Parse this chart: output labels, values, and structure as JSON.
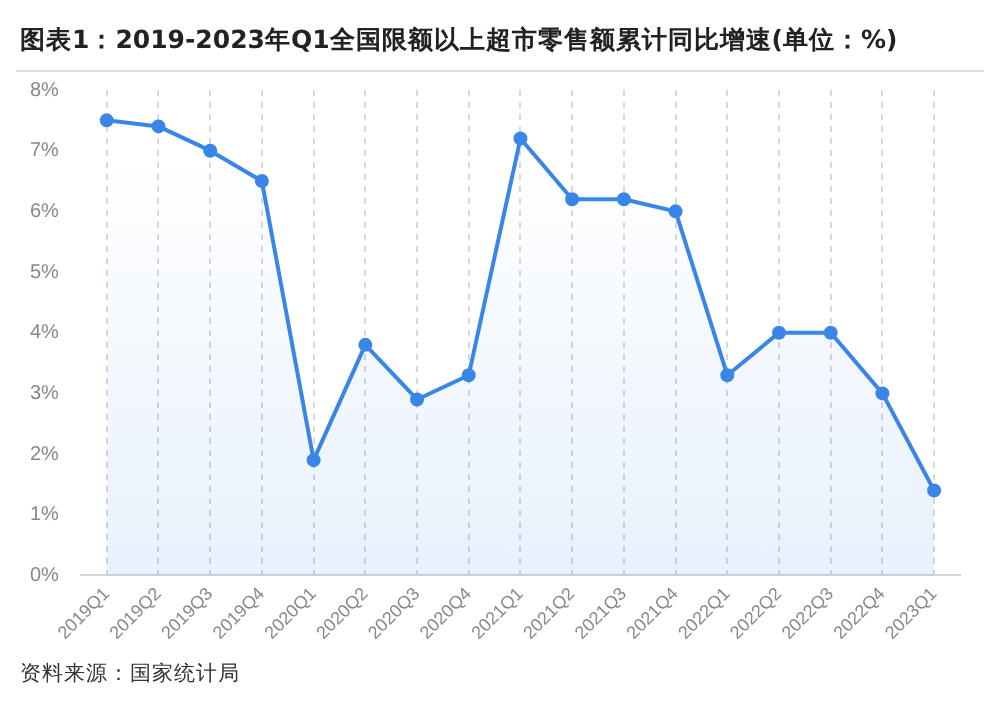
{
  "chart_data": {
    "type": "area",
    "title": "图表1：2019-2023年Q1全国限额以上超市零售额累计同比增速(单位：%)",
    "categories": [
      "2019Q1",
      "2019Q2",
      "2019Q3",
      "2019Q4",
      "2020Q1",
      "2020Q2",
      "2020Q3",
      "2020Q4",
      "2021Q1",
      "2021Q2",
      "2021Q3",
      "2021Q4",
      "2022Q1",
      "2022Q2",
      "2022Q3",
      "2022Q4",
      "2023Q1"
    ],
    "series": [
      {
        "color": "#3a86e8",
        "values": [
          7.5,
          7.4,
          7.0,
          6.5,
          1.9,
          3.8,
          2.9,
          3.3,
          7.2,
          6.2,
          6.2,
          6.0,
          3.3,
          4.0,
          4.0,
          3.0,
          1.4
        ]
      }
    ],
    "ylim": [
      0,
      8
    ],
    "yticks": [
      {
        "value": 0,
        "label": "0%"
      },
      {
        "value": 1,
        "label": "1%"
      },
      {
        "value": 2,
        "label": "2%"
      },
      {
        "value": 3,
        "label": "3%"
      },
      {
        "value": 4,
        "label": "4%"
      },
      {
        "value": 5,
        "label": "5%"
      },
      {
        "value": 6,
        "label": "6%"
      },
      {
        "value": 7,
        "label": "7%"
      },
      {
        "value": 8,
        "label": "8%"
      }
    ],
    "grid": "x",
    "marker": "circle",
    "line_style": "solid",
    "legend": false,
    "annotations": [
      "资料来源：国家统计局"
    ]
  }
}
